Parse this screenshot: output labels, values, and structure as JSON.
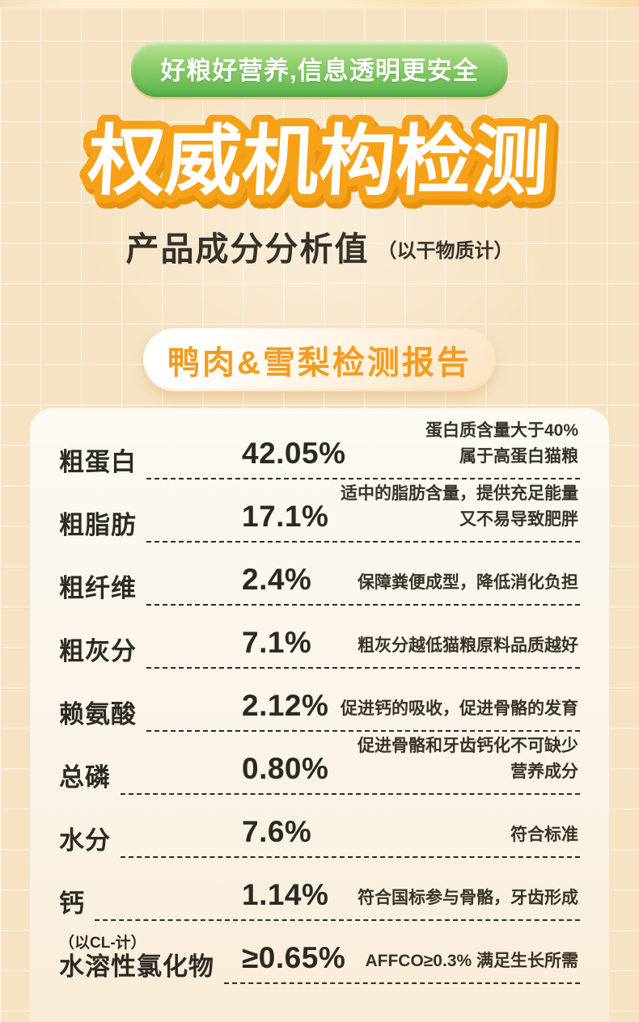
{
  "header": {
    "badge": "好粮好营养,信息透明更安全",
    "title": "权威机构检测",
    "subtitle": "产品成分分析值",
    "subtitle_note": "（以干物质计）"
  },
  "report": {
    "pill_label": "鸭肉&雪梨检测报告"
  },
  "nutrition_table": {
    "rows": [
      {
        "label": "粗蛋白",
        "value": "42.05%",
        "desc": "蛋白质含量大于40%\n属于高蛋白猫粮"
      },
      {
        "label": "粗脂肪",
        "value": "17.1%",
        "desc": "适中的脂肪含量，提供充足能量\n又不易导致肥胖"
      },
      {
        "label": "粗纤维",
        "value": "2.4%",
        "desc": "保障粪便成型，降低消化负担"
      },
      {
        "label": "粗灰分",
        "value": "7.1%",
        "desc": "粗灰分越低猫粮原料品质越好"
      },
      {
        "label": "赖氨酸",
        "value": "2.12%",
        "desc": "促进钙的吸收，促进骨骼的发育"
      },
      {
        "label": "总磷",
        "value": "0.80%",
        "desc": "促进骨骼和牙齿钙化不可缺少\n营养成分"
      },
      {
        "label": "水分",
        "value": "7.6%",
        "desc": "符合标准"
      },
      {
        "label": "钙",
        "value": "1.14%",
        "desc": "符合国标参与骨骼，牙齿形成"
      },
      {
        "sublabel": "（以CL-计）",
        "label": "水溶性氯化物",
        "value": "≥0.65%",
        "desc": "AFFCO≥0.3% 满足生长所需"
      }
    ]
  },
  "colors": {
    "page_background": "#f6e3c3",
    "card_background": "#fbf4e7",
    "title_outline": "#f6a118",
    "title_shadow": "#e9930d",
    "badge_green_top": "#b9e194",
    "badge_green_bottom": "#58b34d",
    "report_pill_text": "#f29c1f",
    "body_text": "#2d2a25"
  }
}
